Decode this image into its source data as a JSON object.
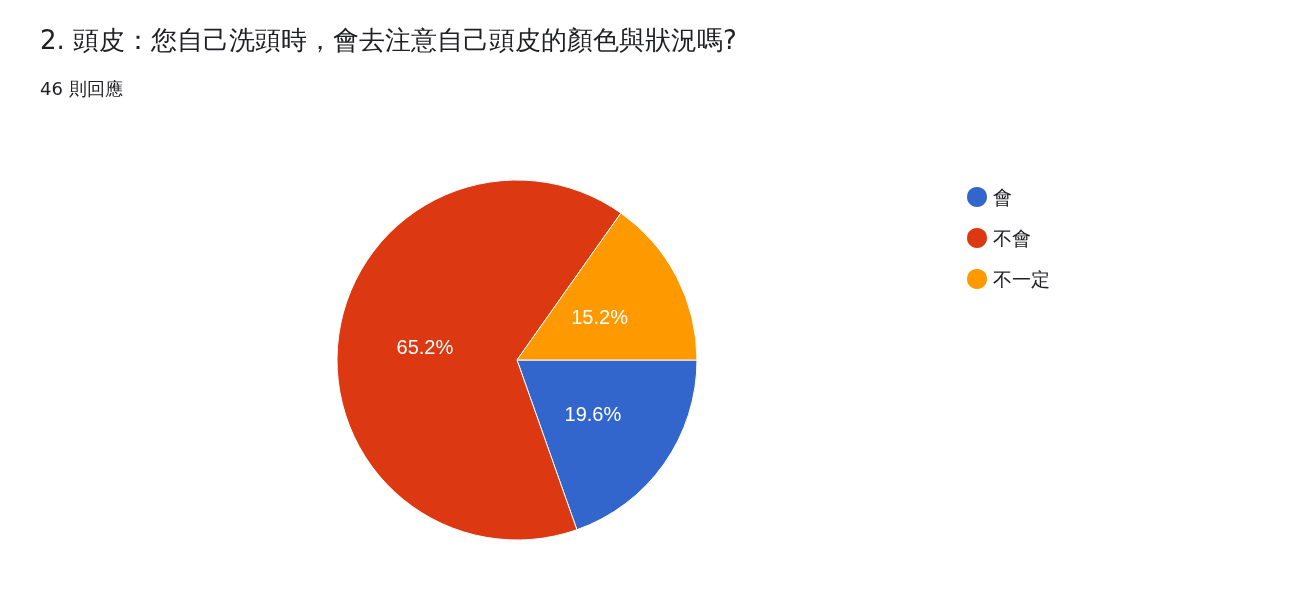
{
  "chart_data": {
    "type": "pie",
    "title": "2. 頭皮：您自己洗頭時，會去注意自己頭皮的顏色與狀況嗎?",
    "subtitle": "46 則回應",
    "categories": [
      "會",
      "不會",
      "不一定"
    ],
    "values": [
      19.6,
      65.2,
      15.2
    ],
    "colors": [
      "#3366cc",
      "#dc3912",
      "#ff9900"
    ],
    "value_labels": [
      "19.6%",
      "65.2%",
      "15.2%"
    ],
    "legend": "right"
  }
}
